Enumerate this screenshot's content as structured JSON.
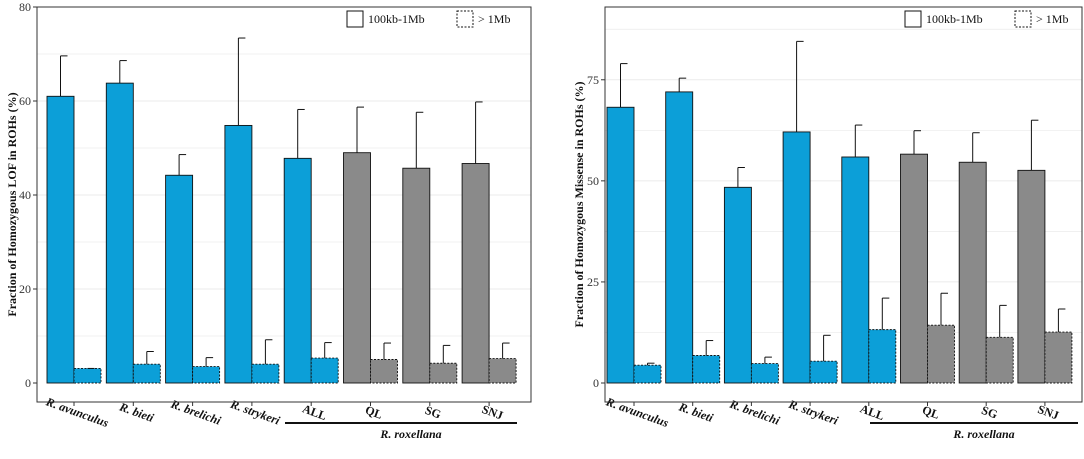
{
  "chart_data": [
    {
      "type": "bar",
      "ylabel": "Fraction of  Homozygous LOF in ROHs (%)",
      "ylim": [
        0,
        80
      ],
      "yticks": [
        0,
        20,
        40,
        60,
        80
      ],
      "categories": [
        "R. avunculus",
        "R. bieti",
        "R. brelichi",
        "R. strykeri",
        "ALL",
        "QL",
        "SG",
        "SNJ"
      ],
      "group_label": "R. roxellana",
      "legend": [
        "100kb-1Mb",
        "> 1Mb"
      ],
      "series": [
        {
          "name": "100kb-1Mb",
          "values": [
            61.0,
            63.8,
            44.2,
            54.8,
            47.8,
            49.0,
            45.7,
            46.7
          ],
          "errors": [
            8.6,
            4.8,
            4.4,
            18.6,
            10.4,
            9.7,
            11.9,
            13.1
          ]
        },
        {
          "name": "> 1Mb",
          "values": [
            3.1,
            4.0,
            3.5,
            4.0,
            5.3,
            5.0,
            4.2,
            5.2
          ],
          "errors": [
            0.0,
            2.7,
            1.9,
            5.2,
            3.3,
            3.5,
            3.8,
            3.3
          ]
        }
      ],
      "colors": {
        "blue": "#0c9fd8",
        "gray": "#8a8a8a",
        "edge": "#111111",
        "grid": "#ebebeb"
      }
    },
    {
      "type": "bar",
      "ylabel": "Fraction of  Homozygous Missense in ROHs (%)",
      "ylim": [
        0,
        93
      ],
      "yticks": [
        0,
        25,
        50,
        75
      ],
      "categories": [
        "R. avunculus",
        "R. bieti",
        "R. brelichi",
        "R. strykeri",
        "ALL",
        "QL",
        "SG",
        "SNJ"
      ],
      "group_label": "R. roxellana",
      "legend": [
        "100kb-1Mb",
        "> 1Mb"
      ],
      "series": [
        {
          "name": "100kb-1Mb",
          "values": [
            68.2,
            72.0,
            48.4,
            62.1,
            55.9,
            56.6,
            54.6,
            52.6
          ],
          "errors": [
            10.8,
            3.4,
            4.9,
            22.4,
            7.9,
            5.8,
            7.3,
            12.4
          ]
        },
        {
          "name": "> 1Mb",
          "values": [
            4.4,
            6.8,
            4.8,
            5.4,
            13.2,
            14.3,
            11.3,
            12.6
          ],
          "errors": [
            0.5,
            3.7,
            1.6,
            6.4,
            7.8,
            7.9,
            7.9,
            5.7
          ]
        }
      ],
      "colors": {
        "blue": "#0c9fd8",
        "gray": "#8a8a8a",
        "edge": "#111111",
        "grid": "#ebebeb"
      }
    }
  ]
}
